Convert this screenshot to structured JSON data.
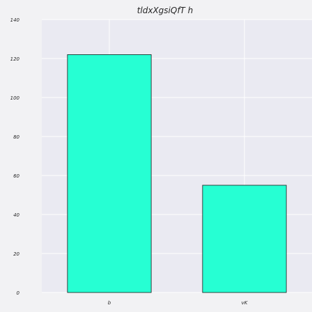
{
  "chart_data": {
    "type": "bar",
    "title": "tldxXgsiQfT h",
    "xlabel": "",
    "ylabel": "",
    "categories": [
      "b",
      "vK"
    ],
    "values": [
      122,
      55
    ],
    "ylim": [
      0,
      140
    ],
    "yticks": [
      0,
      20,
      40,
      60,
      80,
      100,
      120,
      140
    ],
    "grid": true,
    "colors": {
      "bar": "#26ffd3",
      "bar_edge": "#1a1a1a",
      "plot_bg": "#eaeaf2",
      "grid": "#ffffff",
      "page_bg": "#f2f2f4"
    }
  }
}
